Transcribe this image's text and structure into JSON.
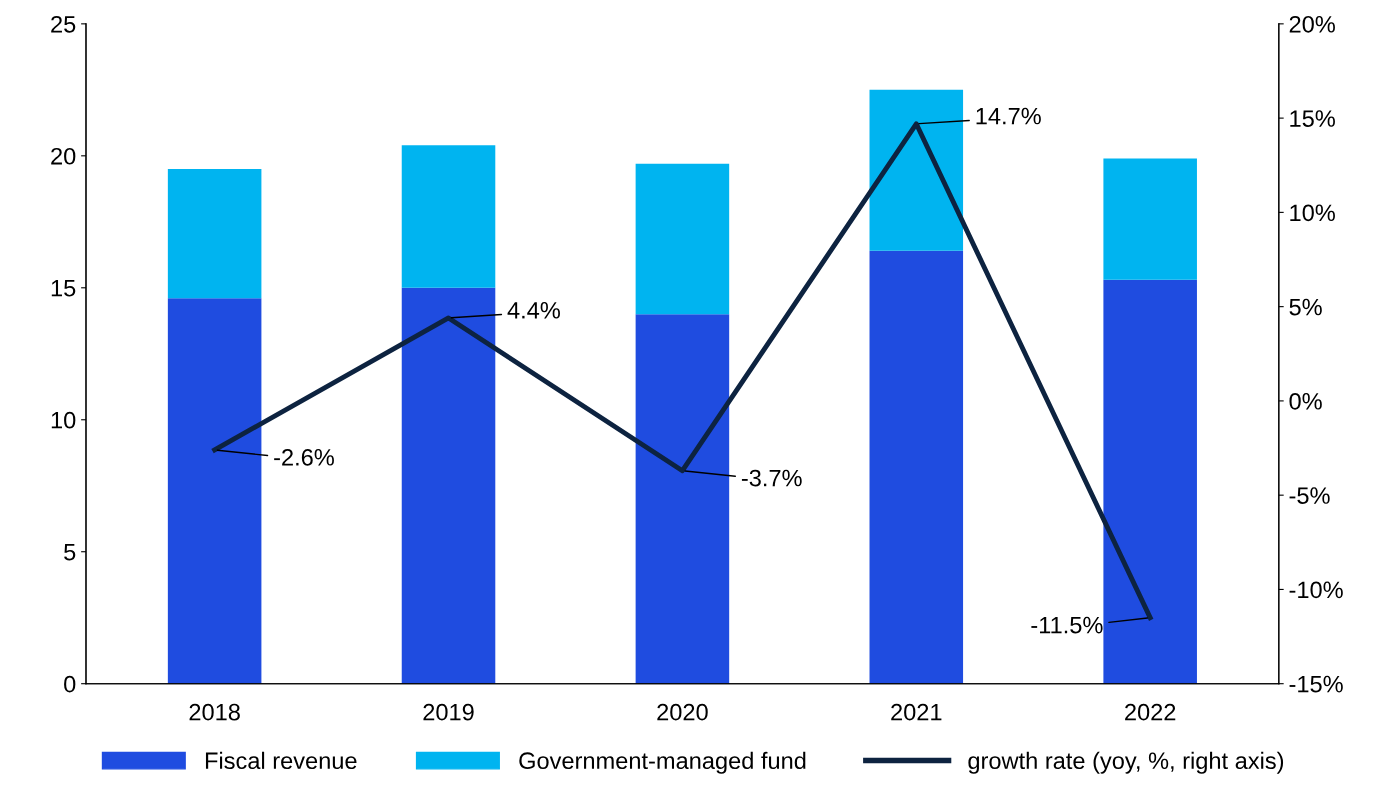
{
  "chart_data": {
    "type": "bar",
    "stacked": true,
    "categories": [
      "2018",
      "2019",
      "2020",
      "2021",
      "2022"
    ],
    "series": [
      {
        "name": "Fiscal revenue",
        "color": "#1f4ce0",
        "values": [
          14.6,
          15.0,
          14.0,
          16.4,
          15.3
        ]
      },
      {
        "name": "Government-managed fund",
        "color": "#00b4f0",
        "values": [
          4.9,
          5.4,
          5.7,
          6.1,
          4.6
        ]
      },
      {
        "name": "growth rate (yoy, %, right axis)",
        "type": "line",
        "axis": "y2",
        "color": "#0d2340",
        "values": [
          -2.6,
          4.4,
          -3.7,
          14.7,
          -11.5
        ],
        "value_labels": [
          "-2.6%",
          "4.4%",
          "-3.7%",
          "14.7%",
          "-11.5%"
        ],
        "marker": "none",
        "line_style": "solid"
      }
    ],
    "ylim": [
      0,
      25
    ],
    "yticks": [
      0,
      5,
      10,
      15,
      20,
      25
    ],
    "y2lim": [
      -15,
      20
    ],
    "y2ticks": [
      {
        "value": -15,
        "label": "-15%"
      },
      {
        "value": -10,
        "label": "-10%"
      },
      {
        "value": -5,
        "label": "-5%"
      },
      {
        "value": 0,
        "label": "0%"
      },
      {
        "value": 5,
        "label": "5%"
      },
      {
        "value": 10,
        "label": "10%"
      },
      {
        "value": 15,
        "label": "15%"
      },
      {
        "value": 20,
        "label": "20%"
      }
    ],
    "grid": false,
    "legend": "bottom"
  }
}
